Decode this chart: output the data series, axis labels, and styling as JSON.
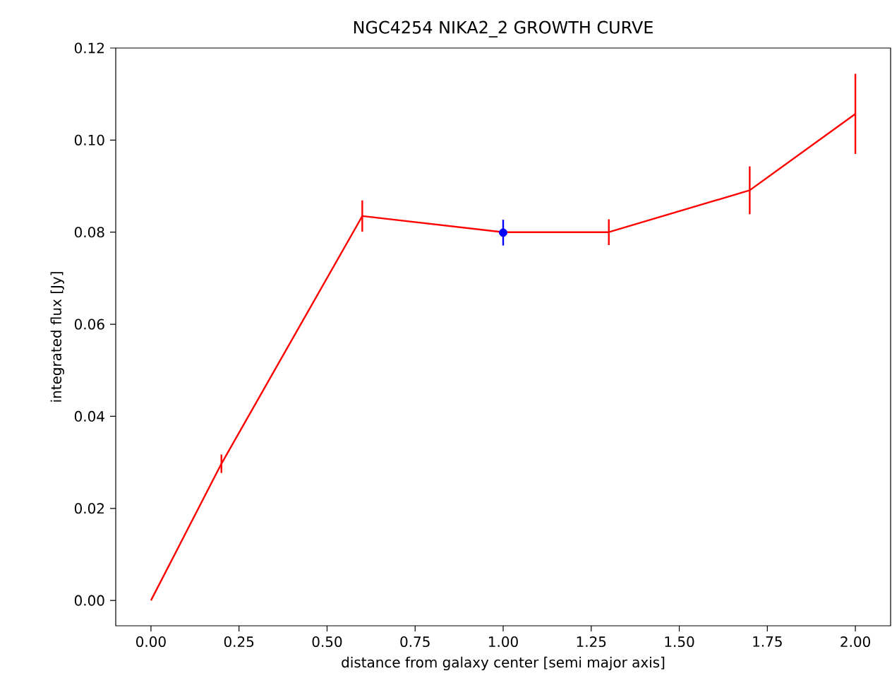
{
  "chart_data": {
    "type": "line",
    "title": "NGC4254 NIKA2_2 GROWTH CURVE",
    "xlabel": "distance from galaxy center [semi major axis]",
    "ylabel": "integrated flux [Jy]",
    "series": [
      {
        "color": "#ff0000",
        "marker": "none",
        "x": [
          0,
          0.2,
          0.6,
          1.0,
          1.3,
          1.7,
          2.0
        ],
        "values": [
          0,
          0.0297,
          0.0835,
          0.08,
          0.08,
          0.0891,
          0.1057
        ],
        "errors": [
          null,
          0.002,
          0.0034,
          null,
          0.0028,
          0.0052,
          0.0087
        ]
      },
      {
        "type": "scatter",
        "color": "#0000ff",
        "marker": "circle",
        "x": [
          1.0
        ],
        "values": [
          0.0799
        ],
        "errors": [
          0.0028
        ]
      }
    ],
    "xlim": [
      -0.1,
      2.1
    ],
    "ylim": [
      -0.0055,
      0.12
    ],
    "xticks": [
      {
        "value": 0,
        "label": "0.00"
      },
      {
        "value": 0.25,
        "label": "0.25"
      },
      {
        "value": 0.5,
        "label": "0.50"
      },
      {
        "value": 0.75,
        "label": "0.75"
      },
      {
        "value": 1,
        "label": "1.00"
      },
      {
        "value": 1.25,
        "label": "1.25"
      },
      {
        "value": 1.5,
        "label": "1.50"
      },
      {
        "value": 1.75,
        "label": "1.75"
      },
      {
        "value": 2,
        "label": "2.00"
      }
    ],
    "yticks": [
      {
        "value": 0,
        "label": "0.00"
      },
      {
        "value": 0.02,
        "label": "0.02"
      },
      {
        "value": 0.04,
        "label": "0.04"
      },
      {
        "value": 0.06,
        "label": "0.06"
      },
      {
        "value": 0.08,
        "label": "0.08"
      },
      {
        "value": 0.1,
        "label": "0.10"
      },
      {
        "value": 0.12,
        "label": "0.12"
      }
    ],
    "grid": false
  }
}
